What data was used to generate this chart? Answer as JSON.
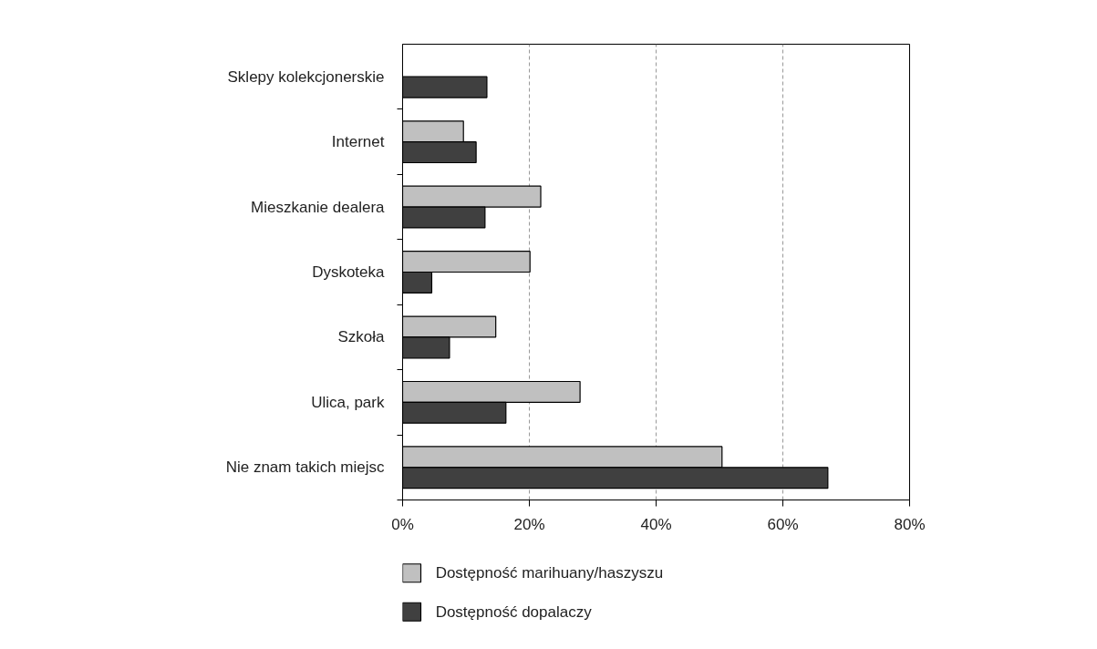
{
  "chart_data": {
    "type": "bar",
    "orientation": "horizontal",
    "categories": [
      "Sklepy kolekcjonerskie",
      "Internet",
      "Mieszkanie dealera",
      "Dyskoteka",
      "Szkoła",
      "Ulica, park",
      "Nie znam takich miejsc"
    ],
    "series": [
      {
        "name": "Dostępność marihuany/haszyszu",
        "color": "#c0c0c0",
        "values": [
          null,
          9.6,
          21.8,
          20.1,
          14.7,
          28.0,
          50.4
        ]
      },
      {
        "name": "Dostępność dopalaczy",
        "color": "#404040",
        "values": [
          13.3,
          11.6,
          13.0,
          4.6,
          7.4,
          16.3,
          67.1
        ]
      }
    ],
    "xlim": [
      0,
      80
    ],
    "xticks": [
      {
        "value": 0,
        "label": "0%"
      },
      {
        "value": 20,
        "label": "20%"
      },
      {
        "value": 40,
        "label": "40%"
      },
      {
        "value": 60,
        "label": "60%"
      },
      {
        "value": 80,
        "label": "80%"
      }
    ],
    "grid": "x",
    "legend": "bottom"
  }
}
